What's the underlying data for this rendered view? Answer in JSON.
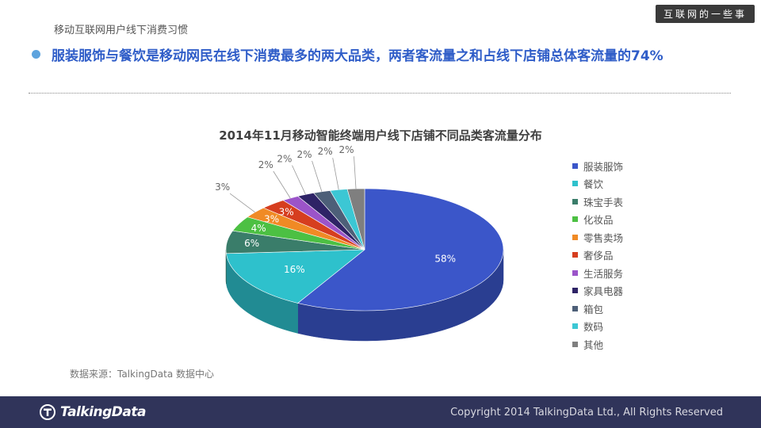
{
  "watermark": "互联网的一些事",
  "subtitle": "移动互联网用户线下消费习惯",
  "headline": "服装服饰与餐饮是移动网民在线下消费最多的两大品类，两者客流量之和占线下店铺总体客流量的74%",
  "source": "数据来源：TalkingData 数据中心",
  "footer": {
    "logo_text": "TalkingData",
    "copyright": "Copyright 2014 TalkingData Ltd., All Rights Reserved"
  },
  "chart_data": {
    "type": "pie",
    "title": "2014年11月移动智能终端用户线下店铺不同品类客流量分布",
    "legend_position": "right",
    "slices": [
      {
        "name": "服装服饰",
        "value": 58,
        "label": "58%",
        "color": "#3b56c9"
      },
      {
        "name": "餐饮",
        "value": 16,
        "label": "16%",
        "color": "#2ec1cc"
      },
      {
        "name": "珠宝手表",
        "value": 6,
        "label": "6%",
        "color": "#3a7d6a"
      },
      {
        "name": "化妆品",
        "value": 4,
        "label": "4%",
        "color": "#4cc043"
      },
      {
        "name": "零售卖场",
        "value": 3,
        "label": "3%",
        "color": "#f08a25"
      },
      {
        "name": "奢侈品",
        "value": 3,
        "label": "3%",
        "color": "#d63e1f"
      },
      {
        "name": "生活服务",
        "value": 2,
        "label": "2%",
        "color": "#9b54c9"
      },
      {
        "name": "家具电器",
        "value": 2,
        "label": "2%",
        "color": "#2e2366"
      },
      {
        "name": "箱包",
        "value": 2,
        "label": "2%",
        "color": "#4d5f78"
      },
      {
        "name": "数码",
        "value": 2,
        "label": "2%",
        "color": "#3cc7d4"
      },
      {
        "name": "其他",
        "value": 2,
        "label": "2%",
        "color": "#7f7f7f"
      }
    ]
  }
}
